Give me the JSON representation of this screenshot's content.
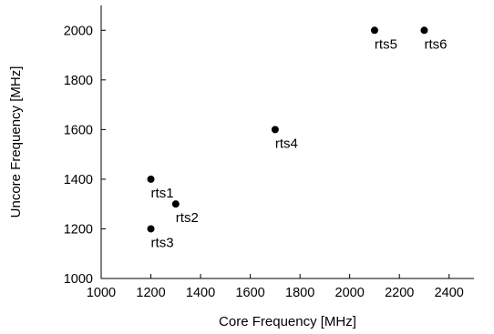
{
  "chart_data": {
    "type": "scatter",
    "title": "",
    "xlabel": "Core Frequency [MHz]",
    "ylabel": "Uncore Frequency [MHz]",
    "xlim": [
      1000,
      2500
    ],
    "ylim": [
      1000,
      2100
    ],
    "xticks": [
      1000,
      1200,
      1400,
      1600,
      1800,
      2000,
      2200,
      2400
    ],
    "yticks": [
      1000,
      1200,
      1400,
      1600,
      1800,
      2000
    ],
    "grid": false,
    "legend": "none",
    "marker_color": "#000000",
    "points": [
      {
        "label": "rts1",
        "x": 1200,
        "y": 1400
      },
      {
        "label": "rts2",
        "x": 1300,
        "y": 1300
      },
      {
        "label": "rts3",
        "x": 1200,
        "y": 1200
      },
      {
        "label": "rts4",
        "x": 1700,
        "y": 1600
      },
      {
        "label": "rts5",
        "x": 2100,
        "y": 2000
      },
      {
        "label": "rts6",
        "x": 2300,
        "y": 2000
      }
    ]
  }
}
